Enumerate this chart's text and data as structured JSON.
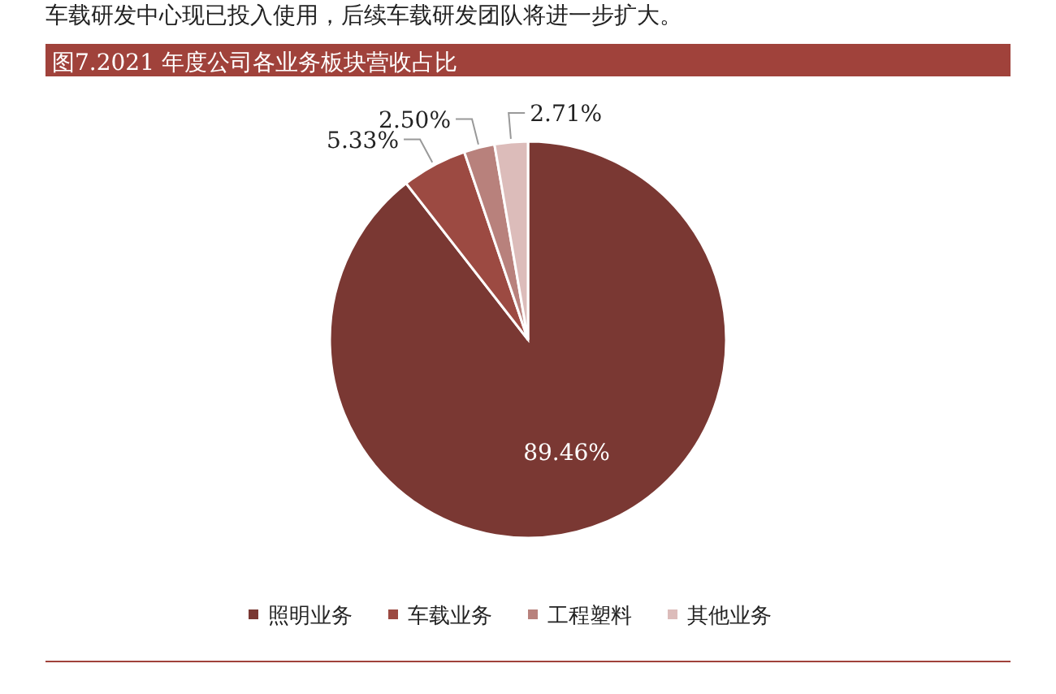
{
  "chart_data": {
    "type": "pie",
    "title": "图7.2021 年度公司各业务板块营收占比",
    "annotations": [
      "车载研发中心现已投入使用，后续车载研发团队将进一步扩大。"
    ],
    "categories": [
      "照明业务",
      "车载业务",
      "工程塑料",
      "其他业务"
    ],
    "values": [
      89.46,
      5.33,
      2.5,
      2.71
    ],
    "colors": [
      "#7a3833",
      "#9c4a42",
      "#b8817c",
      "#dcbcba"
    ],
    "value_labels": [
      "89.46%",
      "5.33%",
      "2.50%",
      "2.71%"
    ],
    "legend": "bottom"
  }
}
